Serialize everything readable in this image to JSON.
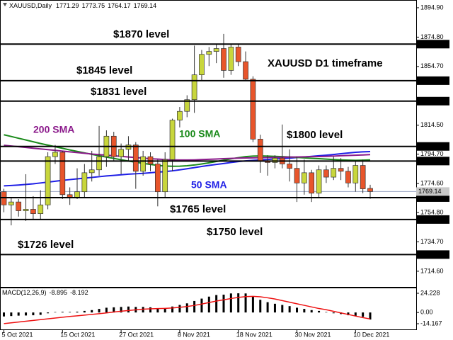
{
  "chart_data": [
    {
      "type": "candlestick",
      "header": "XAUUSD,Daily",
      "title": "XAUUSD D1 timeframe",
      "categories": [
        "5 Oct 2021",
        null,
        null,
        null,
        null,
        null,
        null,
        null,
        "15 Oct 2021",
        null,
        null,
        null,
        null,
        null,
        null,
        null,
        "27 Oct 2021",
        null,
        null,
        null,
        null,
        null,
        null,
        null,
        "8 Nov 2021",
        null,
        null,
        null,
        null,
        null,
        null,
        null,
        "18 Nov 2021",
        null,
        null,
        null,
        null,
        null,
        null,
        null,
        "30 Nov 2021",
        null,
        null,
        null,
        null,
        null,
        null,
        null,
        "10 Dec 2021",
        null,
        null
      ],
      "open": [
        1769,
        1760,
        1762,
        1756,
        1757,
        1754,
        1760,
        1793,
        1796,
        1767,
        1765,
        1769,
        1782,
        1784,
        1793,
        1807,
        1793,
        1798,
        1801,
        1783,
        1793,
        1788,
        1769,
        1791,
        1818,
        1824,
        1832,
        1849,
        1863,
        1865,
        1867,
        1852,
        1868,
        1858,
        1846,
        1805,
        1790,
        1789,
        1792,
        1788,
        1785,
        1775,
        1782,
        1768,
        1784,
        1779,
        1785,
        1783,
        1775,
        1787,
        1771.29
      ],
      "high": [
        1771,
        1765,
        1764,
        1781,
        1766,
        1770,
        1796,
        1801,
        1797,
        1772,
        1785,
        1788,
        1797,
        1814,
        1811,
        1810,
        1802,
        1807,
        1803,
        1797,
        1796,
        1791,
        1796,
        1819,
        1827,
        1835,
        1869,
        1866,
        1868,
        1870,
        1877,
        1870,
        1870,
        1865,
        1848,
        1808,
        1794,
        1794,
        1815,
        1798,
        1793,
        1791,
        1784,
        1787,
        1787,
        1793,
        1792,
        1786,
        1790,
        1791,
        1773.75
      ],
      "low": [
        1755,
        1746,
        1752,
        1749,
        1750,
        1750,
        1757,
        1788,
        1764,
        1760,
        1764,
        1765,
        1776,
        1780,
        1786,
        1790,
        1781,
        1790,
        1771,
        1780,
        1783,
        1759,
        1765,
        1783,
        1813,
        1820,
        1823,
        1845,
        1855,
        1857,
        1847,
        1849,
        1855,
        1845,
        1803,
        1782,
        1780,
        1785,
        1785,
        1776,
        1762,
        1767,
        1762,
        1765,
        1775,
        1777,
        1777,
        1772,
        1769,
        1768,
        1764.17
      ],
      "close": [
        1760,
        1762,
        1756,
        1757,
        1754,
        1760,
        1793,
        1796,
        1767,
        1765,
        1769,
        1782,
        1784,
        1793,
        1807,
        1793,
        1798,
        1801,
        1783,
        1793,
        1788,
        1769,
        1791,
        1818,
        1824,
        1832,
        1849,
        1863,
        1865,
        1867,
        1852,
        1868,
        1858,
        1846,
        1805,
        1790,
        1789,
        1792,
        1788,
        1785,
        1775,
        1782,
        1768,
        1784,
        1779,
        1785,
        1783,
        1775,
        1787,
        1771,
        1769.14
      ],
      "up_color": "#c8d63c",
      "down_color": "#e8552b",
      "ylim": [
        1703.9,
        1900.2
      ],
      "yticks": [
        {
          "value": 1894.9,
          "label": "1894.90"
        },
        {
          "value": 1874.8,
          "label": "1874.80"
        },
        {
          "value": 1854.7,
          "label": "1854.70"
        },
        {
          "value": 1814.5,
          "label": "1814.50"
        },
        {
          "value": 1794.7,
          "label": "1794.70"
        },
        {
          "value": 1774.6,
          "label": "1774.60"
        },
        {
          "value": 1754.8,
          "label": "1754.80"
        },
        {
          "value": 1734.7,
          "label": "1734.70"
        },
        {
          "value": 1714.6,
          "label": "1714.60"
        }
      ],
      "series": [
        {
          "name": "50 SMA",
          "color": "#1f1fe6",
          "values": [
            1773,
            1773.3,
            1773.6,
            1774,
            1774.4,
            1775,
            1775.6,
            1776.2,
            1776.8,
            1777.3,
            1777.8,
            1778.3,
            1778.8,
            1779.3,
            1779.8,
            1780.2,
            1780.6,
            1781,
            1781.3,
            1781.6,
            1782,
            1782.4,
            1782.8,
            1783.3,
            1784,
            1784.7,
            1785.5,
            1786.3,
            1787,
            1787.7,
            1788.3,
            1789,
            1789.6,
            1790.1,
            1790.5,
            1790.8,
            1791.1,
            1791.4,
            1791.7,
            1792,
            1792.4,
            1792.8,
            1793.2,
            1793.6,
            1794,
            1794.5,
            1795,
            1795.5,
            1796,
            1796.3,
            1796.5
          ]
        },
        {
          "name": "100 SMA",
          "color": "#1a8a1a",
          "values": [
            1808,
            1806.8,
            1805.6,
            1804.4,
            1803.2,
            1802,
            1800.9,
            1799.8,
            1798.7,
            1797.6,
            1796.6,
            1795.6,
            1794.6,
            1793.6,
            1792.7,
            1791.8,
            1790.9,
            1790,
            1789.2,
            1788.4,
            1787.7,
            1787,
            1786.6,
            1786.4,
            1786.5,
            1786.8,
            1787.3,
            1788,
            1788.8,
            1789.7,
            1790.6,
            1791.5,
            1792.3,
            1793,
            1793.4,
            1793.5,
            1793.4,
            1793.2,
            1793,
            1792.8,
            1792.5,
            1792.2,
            1791.9,
            1791.6,
            1791.3,
            1791,
            1790.8,
            1790.6,
            1790.5,
            1790.6,
            1790.8
          ]
        },
        {
          "name": "200 SMA",
          "color": "#8b1a8b",
          "values": [
            1800.8,
            1800.3,
            1799.8,
            1799.3,
            1798.8,
            1798.3,
            1797.8,
            1797.3,
            1796.8,
            1796.3,
            1795.8,
            1795.3,
            1794.8,
            1794.4,
            1794,
            1793.6,
            1793.2,
            1792.8,
            1792.4,
            1792,
            1791.6,
            1791.3,
            1791,
            1790.8,
            1790.7,
            1790.7,
            1790.8,
            1791,
            1791.2,
            1791.4,
            1791.6,
            1791.8,
            1792,
            1792.1,
            1792.2,
            1792.3,
            1792.4,
            1792.5,
            1792.6,
            1792.7,
            1792.8,
            1792.9,
            1793,
            1793.1,
            1793.2,
            1793.4,
            1793.6,
            1793.8,
            1794,
            1794.2,
            1794.4
          ]
        }
      ],
      "levels": [
        {
          "value": 1870,
          "label": "1870.00",
          "text": "$1870 level"
        },
        {
          "value": 1845,
          "label": "1845.00",
          "text": "$1845 level"
        },
        {
          "value": 1831,
          "label": "1831.00",
          "text": "$1831 level"
        },
        {
          "value": 1800,
          "label": "1800.00",
          "text": "$1800 level"
        },
        {
          "value": 1790,
          "label": "1790.00"
        },
        {
          "value": 1765,
          "label": "1765.00",
          "text": "$1765 level"
        },
        {
          "value": 1750,
          "label": "1750.00",
          "text": "$1750 level"
        },
        {
          "value": 1726,
          "label": "1726.00",
          "text": "$1726 level"
        }
      ]
    },
    {
      "type": "bar",
      "header": "MACD(12,26,9)",
      "values": [
        -5,
        -4.5,
        -4,
        -3.8,
        -3.5,
        -3,
        -1,
        0.5,
        0.8,
        0.6,
        1,
        2,
        3,
        4.5,
        6,
        6.5,
        7,
        7.5,
        7,
        7,
        6.5,
        5,
        5.5,
        7.5,
        9.5,
        11.5,
        14.5,
        17.5,
        20,
        22,
        22.5,
        24,
        24.2,
        24,
        20,
        16,
        13,
        11,
        9.5,
        8,
        6,
        4.5,
        3,
        2,
        0.5,
        -1,
        -2,
        -3.5,
        -4.5,
        -5.5,
        -8.895
      ],
      "color": "#000000",
      "signal": {
        "color": "#ee1111",
        "values": [
          -14,
          -13,
          -12,
          -11,
          -10,
          -9,
          -8,
          -7,
          -6,
          -5,
          -4.2,
          -3.3,
          -2.4,
          -1.5,
          -0.5,
          0.6,
          1.6,
          2.5,
          3.4,
          4.1,
          4.6,
          4.9,
          5.2,
          5.7,
          6.5,
          7.5,
          8.9,
          10.6,
          12.5,
          14.4,
          16,
          17.6,
          19,
          20,
          20.3,
          19.8,
          18.5,
          17,
          15,
          13,
          11,
          9,
          7,
          5,
          3.5,
          1.5,
          -0.5,
          -2.5,
          -4.5,
          -6.5,
          -8.192
        ]
      },
      "ylim": [
        -22.2,
        30.5
      ],
      "yticks": [
        24.228,
        {
          "value": 0,
          "label": "0.00"
        },
        -14.167
      ]
    }
  ]
}
